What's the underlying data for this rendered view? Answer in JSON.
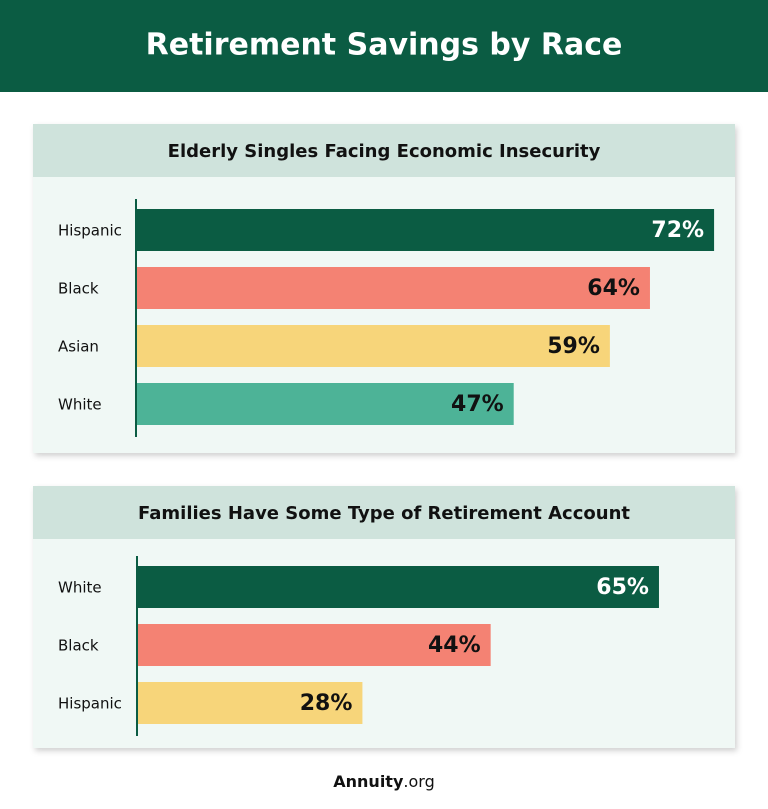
{
  "header": {
    "title": "Retirement Savings by Race"
  },
  "chart_data": [
    {
      "type": "bar",
      "orientation": "horizontal",
      "title": "Elderly Singles Facing Economic Insecurity",
      "categories": [
        "Hispanic",
        "Black",
        "Asian",
        "White"
      ],
      "values": [
        72,
        64,
        59,
        47
      ],
      "value_labels": [
        "72%",
        "64%",
        "59%",
        "47%"
      ],
      "colors": [
        "#0b5c43",
        "#f48273",
        "#f7d57a",
        "#4db397"
      ]
    },
    {
      "type": "bar",
      "orientation": "horizontal",
      "title": "Families Have Some Type of Retirement Account",
      "categories": [
        "White",
        "Black",
        "Hispanic"
      ],
      "values": [
        65,
        44,
        28
      ],
      "value_labels": [
        "65%",
        "44%",
        "28%"
      ],
      "colors": [
        "#0b5c43",
        "#f48273",
        "#f7d57a"
      ]
    }
  ],
  "footer": {
    "brand": "Annuity",
    "domain": ".org"
  }
}
